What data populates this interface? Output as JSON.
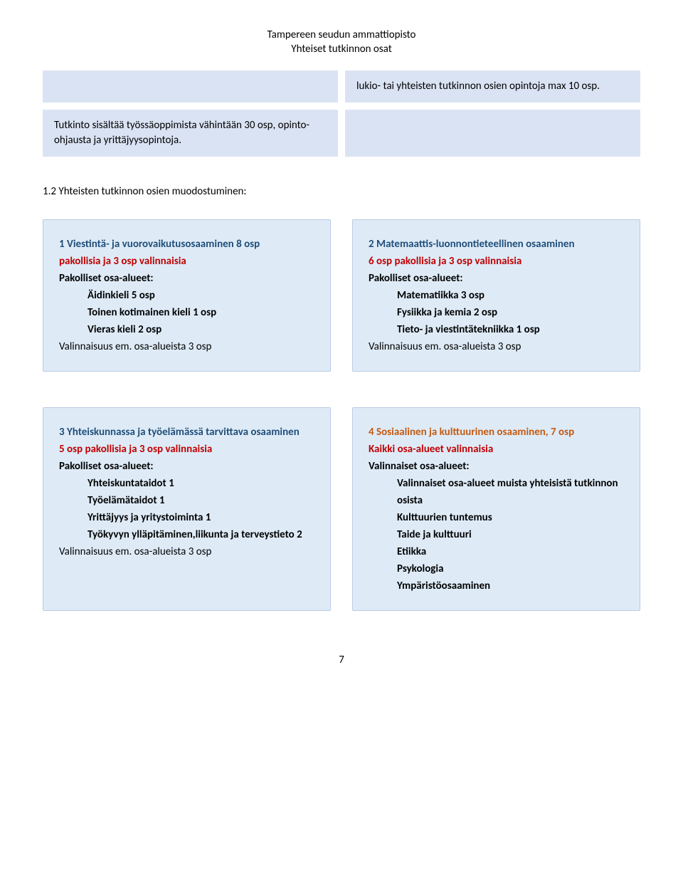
{
  "header": {
    "line1": "Tampereen seudun ammattiopisto",
    "line2": "Yhteiset tutkinnon osat"
  },
  "top_note": {
    "text": "lukio- tai yhteisten tutkinnon osien opintoja max 10 osp."
  },
  "degree_note": {
    "text": "Tutkinto sisältää työssäoppimista vähintään 30 osp, opinto-ohjausta ja yrittäjyysopintoja."
  },
  "section_heading": "1.2 Yhteisten tutkinnon osien muodostuminen:",
  "card1": {
    "title": "1 Viestintä- ja vuorovaikutusosaaminen 8 osp",
    "subtitle": "pakollisia ja 3 osp valinnaisia",
    "group_label": "Pakolliset osa-alueet:",
    "items": [
      "Äidinkieli 5 osp",
      "Toinen kotimainen kieli 1 osp",
      "Vieras kieli 2 osp"
    ],
    "foot": "Valinnaisuus em. osa-alueista 3 osp"
  },
  "card2": {
    "title": "2 Matemaattis-luonnontieteellinen osaaminen",
    "subtitle": "6 osp pakollisia ja 3 osp valinnaisia",
    "group_label": "Pakolliset osa-alueet:",
    "items": [
      "Matematiikka 3 osp",
      "Fysiikka ja kemia 2 osp",
      "Tieto- ja viestintätekniikka 1 osp"
    ],
    "foot": "Valinnaisuus em. osa-alueista 3 osp"
  },
  "card3": {
    "title": "3 Yhteiskunnassa ja työelämässä tarvittava osaaminen",
    "subtitle": "5 osp pakollisia ja 3 osp valinnaisia",
    "group_label": "Pakolliset osa-alueet:",
    "items": [
      "Yhteiskuntataidot 1",
      "Työelämätaidot 1",
      "Yrittäjyys ja yritystoiminta 1",
      "Työkyvyn ylläpitäminen,liikunta ja terveystieto 2"
    ],
    "foot": "Valinnaisuus em. osa-alueista 3 osp"
  },
  "card4": {
    "title": "4 Sosiaalinen ja kulttuurinen osaaminen, 7 osp",
    "subtitle": "Kaikki osa-alueet valinnaisia",
    "group_label": "Valinnaiset osa-alueet:",
    "items": [
      "Valinnaiset osa-alueet muista yhteisistä tutkinnon osista",
      "Kulttuurien tuntemus",
      "Taide ja kulttuuri",
      "Etiikka",
      "Psykologia",
      "Ympäristöosaaminen"
    ]
  },
  "page_number": "7",
  "colors": {
    "top_card_bg": "#dae3f3",
    "info_card_bg": "#deebf7",
    "info_card_border": "#b8cbe4",
    "title_blue": "#1f4e79",
    "subtitle_red": "#c00000",
    "orange": "#c55a11",
    "text": "#000000",
    "page_bg": "#ffffff"
  },
  "typography": {
    "body_fontsize_pt": 11,
    "line_height": 1.6
  }
}
